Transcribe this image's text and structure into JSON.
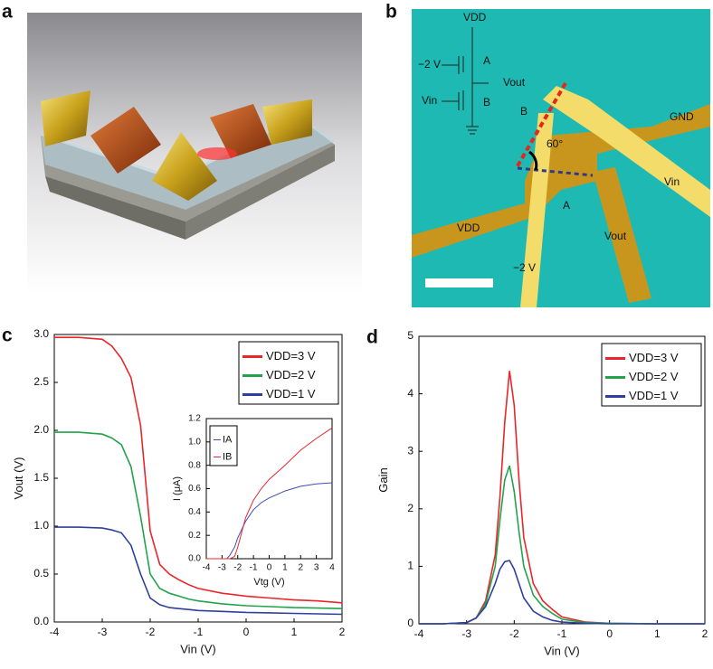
{
  "images": [
    {
      "panel_label": "a"
    },
    {
      "panel_label": "b",
      "labels": [
        "VDD",
        "−2 V",
        "A",
        "Vout",
        "Vin",
        "B",
        "B",
        "GND",
        "60°",
        "Vin",
        "A",
        "VDD",
        "Vout",
        "−2 V"
      ]
    }
  ],
  "chart_data": [
    {
      "type": "line",
      "panel_label": "c",
      "xlabel": "Vin (V)",
      "ylabel": "Vout (V)",
      "x": [
        -4,
        -3.5,
        -3,
        -2.8,
        -2.6,
        -2.4,
        -2.2,
        -2.0,
        -1.8,
        -1.6,
        -1.4,
        -1.2,
        -1,
        -0.5,
        0,
        0.5,
        1,
        1.5,
        2
      ],
      "series": [
        {
          "name": "VDD=3 V",
          "color": "#e8262b",
          "values": [
            2.97,
            2.97,
            2.95,
            2.88,
            2.75,
            2.55,
            2.05,
            0.95,
            0.6,
            0.5,
            0.44,
            0.39,
            0.35,
            0.3,
            0.27,
            0.25,
            0.23,
            0.22,
            0.2
          ]
        },
        {
          "name": "VDD=2 V",
          "color": "#22a34a",
          "values": [
            1.98,
            1.98,
            1.96,
            1.92,
            1.85,
            1.62,
            1.1,
            0.5,
            0.35,
            0.3,
            0.27,
            0.24,
            0.22,
            0.19,
            0.17,
            0.16,
            0.15,
            0.145,
            0.14
          ]
        },
        {
          "name": "VDD=1 V",
          "color": "#2e3f9e",
          "values": [
            0.99,
            0.99,
            0.98,
            0.96,
            0.93,
            0.8,
            0.5,
            0.25,
            0.18,
            0.15,
            0.14,
            0.13,
            0.12,
            0.11,
            0.1,
            0.095,
            0.09,
            0.085,
            0.08
          ]
        }
      ],
      "xlim": [
        -4,
        2
      ],
      "xticks": [
        -4,
        -3,
        -2,
        -1,
        0,
        1,
        2
      ],
      "ylim": [
        0,
        3
      ],
      "yticks": [
        {
          "value": 0,
          "label": "0.0"
        },
        {
          "value": 0.5,
          "label": "0.5"
        },
        {
          "value": 1,
          "label": "1.0"
        },
        {
          "value": 1.5,
          "label": "1.5"
        },
        {
          "value": 2,
          "label": "2.0"
        },
        {
          "value": 2.5,
          "label": "2.5"
        },
        {
          "value": 3,
          "label": "3.0"
        }
      ],
      "legend": "upper right"
    },
    {
      "type": "line",
      "xlabel": "Vtg (V)",
      "ylabel": "I (μA)",
      "x": [
        -4,
        -3,
        -2.7,
        -2.5,
        -2.2,
        -2,
        -1.5,
        -1,
        -0.5,
        0,
        1,
        2,
        3,
        4
      ],
      "series": [
        {
          "name": "IA",
          "color": "#3b4fb0",
          "values": [
            0,
            0,
            0,
            0.03,
            0.1,
            0.18,
            0.32,
            0.42,
            0.48,
            0.52,
            0.58,
            0.62,
            0.64,
            0.65
          ]
        },
        {
          "name": "IB",
          "color": "#e8262b",
          "values": [
            0,
            0,
            0,
            0,
            0.02,
            0.1,
            0.35,
            0.5,
            0.6,
            0.68,
            0.8,
            0.93,
            1.03,
            1.12
          ]
        }
      ],
      "xlim": [
        -4,
        4
      ],
      "xticks": [
        -4,
        -3,
        -2,
        -1,
        0,
        1,
        2,
        3,
        4
      ],
      "ylim": [
        0,
        1.2
      ],
      "yticks": [
        {
          "value": 0,
          "label": "0.0"
        },
        {
          "value": 0.2,
          "label": "0.2"
        },
        {
          "value": 0.4,
          "label": "0.4"
        },
        {
          "value": 0.6,
          "label": "0.6"
        },
        {
          "value": 0.8,
          "label": "0.8"
        },
        {
          "value": 1,
          "label": "1.0"
        },
        {
          "value": 1.2,
          "label": "1.2"
        }
      ],
      "legend": "upper left"
    },
    {
      "type": "line",
      "panel_label": "d",
      "xlabel": "Vin (V)",
      "ylabel": "Gain",
      "x": [
        -4,
        -3.5,
        -3,
        -2.8,
        -2.6,
        -2.4,
        -2.3,
        -2.2,
        -2.1,
        -2.0,
        -1.9,
        -1.8,
        -1.6,
        -1.4,
        -1.2,
        -1,
        -0.5,
        0,
        1,
        2
      ],
      "series": [
        {
          "name": "VDD=3 V",
          "color": "#e8262b",
          "values": [
            0,
            0,
            0.02,
            0.1,
            0.4,
            1.2,
            2.2,
            3.5,
            4.4,
            3.8,
            2.5,
            1.5,
            0.7,
            0.4,
            0.25,
            0.12,
            0.03,
            0.01,
            0,
            0
          ]
        },
        {
          "name": "VDD=2 V",
          "color": "#22a34a",
          "values": [
            0,
            0,
            0.02,
            0.1,
            0.35,
            1.0,
            1.8,
            2.5,
            2.75,
            2.3,
            1.6,
            1.0,
            0.5,
            0.3,
            0.18,
            0.08,
            0.02,
            0.01,
            0,
            0
          ]
        },
        {
          "name": "VDD=1 V",
          "color": "#2e3f9e",
          "values": [
            0,
            0,
            0.02,
            0.1,
            0.3,
            0.7,
            0.95,
            1.08,
            1.1,
            0.95,
            0.7,
            0.45,
            0.22,
            0.12,
            0.06,
            0.03,
            0.01,
            0,
            0,
            0
          ]
        }
      ],
      "xlim": [
        -4,
        2
      ],
      "xticks": [
        -4,
        -3,
        -2,
        -1,
        0,
        1,
        2
      ],
      "ylim": [
        0,
        5
      ],
      "yticks": [
        0,
        1,
        2,
        3,
        4,
        5
      ],
      "legend": "upper right"
    }
  ]
}
